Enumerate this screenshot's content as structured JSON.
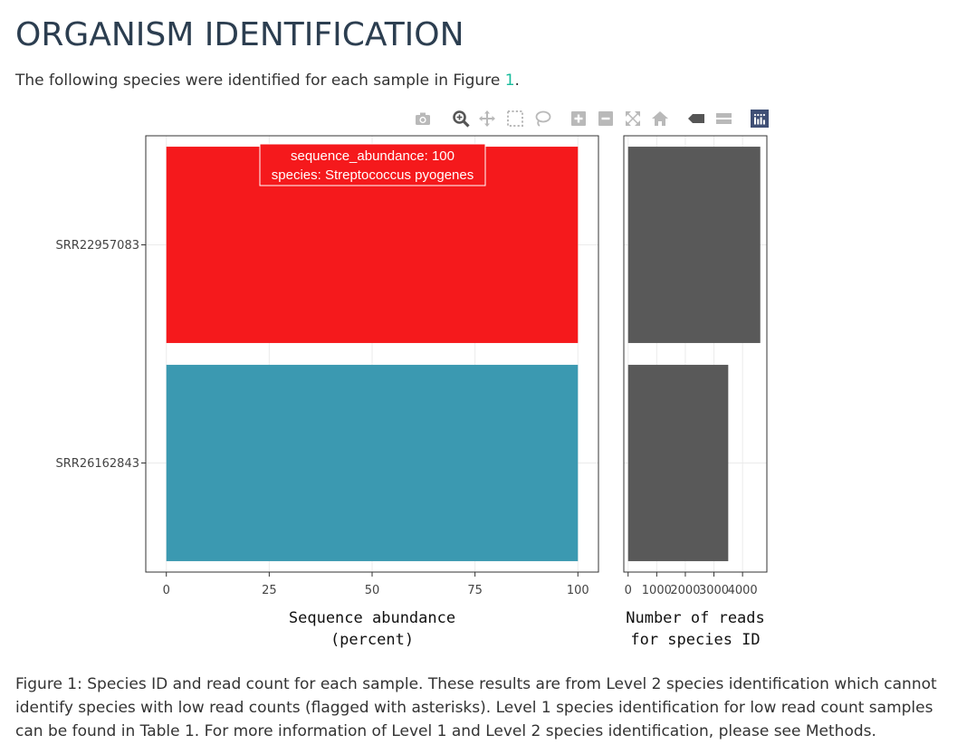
{
  "page": {
    "title": "ORGANISM IDENTIFICATION",
    "intro_text": "The following species were identified for each sample in Figure ",
    "intro_link": "1",
    "intro_end": ".",
    "caption": "Figure 1: Species ID and read count for each sample. These results are from Level 2 species identification which cannot identify species with low read counts (flagged with asterisks). Level 1 species identification for low read count samples can be found in Table 1. For more information of Level 1 and Level 2 species identification, please see Methods."
  },
  "modebar": [
    {
      "name": "camera-icon"
    },
    {
      "name": "zoom-icon"
    },
    {
      "name": "pan-icon"
    },
    {
      "name": "box-select-icon"
    },
    {
      "name": "lasso-select-icon"
    },
    {
      "name": "zoom-in-icon"
    },
    {
      "name": "zoom-out-icon"
    },
    {
      "name": "autoscale-icon"
    },
    {
      "name": "reset-axes-icon"
    },
    {
      "name": "hover-closest-icon"
    },
    {
      "name": "hover-compare-icon"
    },
    {
      "name": "plotly-logo-icon"
    }
  ],
  "chart_data": [
    {
      "type": "bar",
      "orientation": "horizontal",
      "categories": [
        "SRR22957083",
        "SRR26162843"
      ],
      "series": [
        {
          "species": "Streptococcus pyogenes",
          "sample": "SRR22957083",
          "value": 100,
          "color": "#f5191c"
        },
        {
          "species": "",
          "sample": "SRR26162843",
          "value": 100,
          "color": "#3b99b1"
        }
      ],
      "xlabel": [
        "Sequence abundance",
        "(percent)"
      ],
      "xticks": [
        0,
        25,
        50,
        75,
        100
      ],
      "xlim": [
        -5,
        105
      ],
      "grid": true,
      "hover": {
        "line1": "sequence_abundance: 100",
        "line2": "species: Streptococcus pyogenes",
        "color": "#f5191c"
      }
    },
    {
      "type": "bar",
      "orientation": "horizontal",
      "categories": [
        "SRR22957083",
        "SRR26162843"
      ],
      "values": [
        4620,
        3500
      ],
      "color": "#595959",
      "xlabel": [
        "Number of reads",
        "for species ID"
      ],
      "xticks": [
        0,
        1000,
        2000,
        3000,
        4000
      ],
      "xlim": [
        -150,
        4850
      ],
      "grid": true
    }
  ]
}
